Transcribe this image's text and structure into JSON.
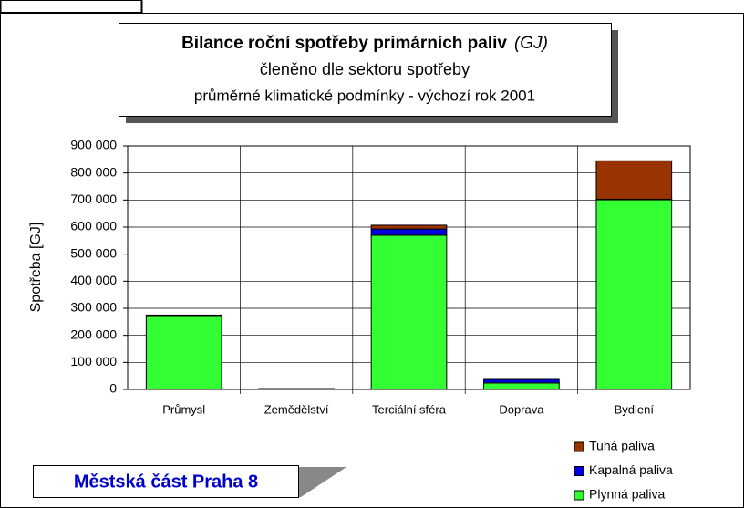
{
  "chart_data": {
    "type": "stacked_bar",
    "title": "Bilance roční spotřeby primárních paliv",
    "title_unit": "(GJ)",
    "subtitle": "členěno dle sektoru spotřeby",
    "subtitle2": "průměrné klimatické podmínky - výchozí rok 2001",
    "y_label": "Spotřeba [GJ]",
    "annotation": "Městská část Praha 8",
    "categories": [
      "Průmysl",
      "Zemědělství",
      "Terciální sféra",
      "Doprava",
      "Bydlení"
    ],
    "series": [
      {
        "name": "Plynná paliva",
        "color": "#33ff33",
        "values": [
          270000,
          2000,
          570000,
          24000,
          701000
        ]
      },
      {
        "name": "Kapalná paliva",
        "color": "#0000dd",
        "values": [
          2000,
          500,
          23000,
          13000,
          2000
        ]
      },
      {
        "name": "Tuhá paliva",
        "color": "#993300",
        "values": [
          3000,
          500,
          14000,
          0,
          142000
        ]
      }
    ],
    "ylim": [
      0,
      900000
    ],
    "yticks": [
      0,
      {
        "value": 100000,
        "label": "100 000"
      },
      {
        "value": 200000,
        "label": "200 000"
      },
      {
        "value": 300000,
        "label": "300 000"
      },
      {
        "value": 400000,
        "label": "400 000"
      },
      {
        "value": 500000,
        "label": "500 000"
      },
      {
        "value": 600000,
        "label": "600 000"
      },
      {
        "value": 700000,
        "label": "700 000"
      },
      {
        "value": 800000,
        "label": "800 000"
      },
      {
        "value": 900000,
        "label": "900 000"
      }
    ],
    "grid": true
  }
}
